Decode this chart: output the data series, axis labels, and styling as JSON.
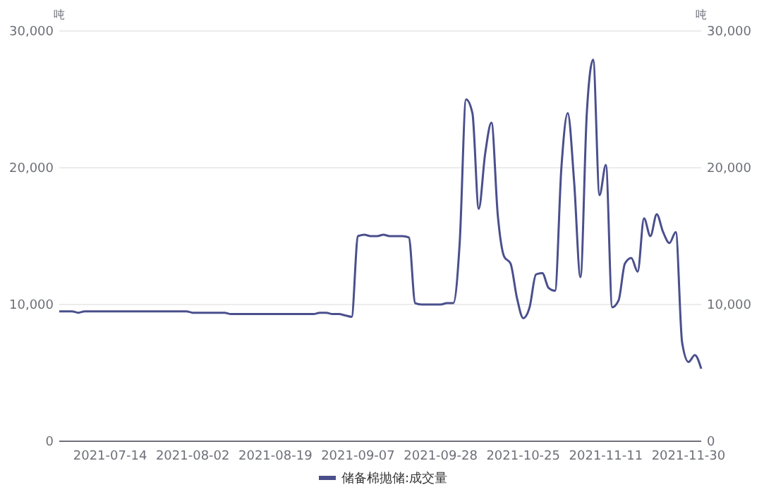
{
  "chart_data": {
    "type": "line",
    "ylabel": "吨",
    "y2label": "吨",
    "categories": [
      null,
      null,
      null,
      null,
      null,
      null,
      null,
      null,
      "2021-07-14",
      null,
      null,
      null,
      null,
      null,
      null,
      null,
      null,
      null,
      null,
      null,
      null,
      "2021-08-02",
      null,
      null,
      null,
      null,
      null,
      null,
      null,
      null,
      null,
      null,
      null,
      null,
      "2021-08-19",
      null,
      null,
      null,
      null,
      null,
      null,
      null,
      null,
      null,
      null,
      null,
      null,
      "2021-09-07",
      null,
      null,
      null,
      null,
      null,
      null,
      null,
      null,
      null,
      null,
      null,
      null,
      "2021-09-28",
      null,
      null,
      null,
      null,
      null,
      null,
      null,
      null,
      null,
      null,
      null,
      null,
      "2021-10-25",
      null,
      null,
      null,
      null,
      null,
      null,
      null,
      null,
      null,
      null,
      null,
      null,
      "2021-11-11",
      null,
      null,
      null,
      null,
      null,
      null,
      null,
      null,
      null,
      null,
      null,
      null,
      "2021-11-30",
      null,
      null
    ],
    "series": [
      {
        "name": "储备棉抛储:成交量",
        "color": "#4a4f8c",
        "values": [
          9500,
          9500,
          9500,
          9400,
          9500,
          9500,
          9500,
          9500,
          9500,
          9500,
          9500,
          9500,
          9500,
          9500,
          9500,
          9500,
          9500,
          9500,
          9500,
          9500,
          9500,
          9400,
          9400,
          9400,
          9400,
          9400,
          9400,
          9300,
          9300,
          9300,
          9300,
          9300,
          9300,
          9300,
          9300,
          9300,
          9300,
          9300,
          9300,
          9300,
          9300,
          9400,
          9400,
          9300,
          9300,
          9200,
          9100,
          15000,
          15100,
          15000,
          15000,
          15100,
          15000,
          15000,
          15000,
          14900,
          10100,
          10000,
          10000,
          10000,
          10000,
          10100,
          10100,
          14500,
          25000,
          24000,
          17000,
          21000,
          23300,
          16500,
          13500,
          13000,
          10500,
          9000,
          9800,
          12200,
          12300,
          11200,
          11000,
          20000,
          24000,
          19000,
          12000,
          24000,
          27900,
          18000,
          20200,
          9800,
          10300,
          13000,
          13400,
          12400,
          16300,
          15000,
          16600,
          15300,
          14500,
          15300,
          7200,
          5800,
          6300,
          5300
        ]
      }
    ],
    "ylim": [
      0,
      30000
    ],
    "yticks": [
      {
        "value": 0,
        "label": "0"
      },
      {
        "value": 10000,
        "label": "10,000"
      },
      {
        "value": 20000,
        "label": "20,000"
      },
      {
        "value": 30000,
        "label": "30,000"
      }
    ],
    "y2lim": [
      0,
      30000
    ],
    "y2ticks": [
      {
        "value": 0,
        "label": "0"
      },
      {
        "value": 10000,
        "label": "10,000"
      },
      {
        "value": 20000,
        "label": "20,000"
      },
      {
        "value": 30000,
        "label": "30,000"
      }
    ],
    "grid": "y",
    "legend": "bottom",
    "marker": "none",
    "line_style": "solid"
  }
}
